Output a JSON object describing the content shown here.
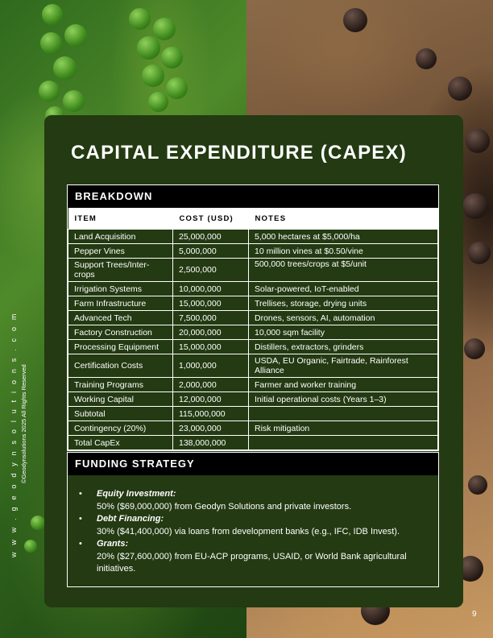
{
  "side_text": {
    "website": "w w w . g e o d y n s o l u t i o n s . c o m",
    "copyright": "©Geodynsolutions 2025 All Rights Reserved"
  },
  "title": "CAPITAL EXPENDITURE (CAPEX)",
  "breakdown": {
    "heading": "BREAKDOWN",
    "columns": [
      "ITEM",
      "COST (USD)",
      "NOTES"
    ],
    "rows": [
      {
        "item": "Land Acquisition",
        "cost": "25,000,000",
        "notes": "5,000 hectares at $5,000/ha"
      },
      {
        "item": "Pepper Vines",
        "cost": "5,000,000",
        "notes": "10 million vines at $0.50/vine"
      },
      {
        "item": "Support Trees/Inter-crops",
        "cost": "2,500,000",
        "notes": "500,000 trees/crops at $5/unit"
      },
      {
        "item": "Irrigation Systems",
        "cost": "10,000,000",
        "notes": "Solar-powered, IoT-enabled"
      },
      {
        "item": "Farm Infrastructure",
        "cost": "15,000,000",
        "notes": "Trellises, storage, drying units"
      },
      {
        "item": "Advanced Tech",
        "cost": "7,500,000",
        "notes": "Drones, sensors, AI, automation"
      },
      {
        "item": "Factory Construction",
        "cost": "20,000,000",
        "notes": "10,000 sqm facility"
      },
      {
        "item": "Processing Equipment",
        "cost": "15,000,000",
        "notes": "Distillers, extractors, grinders"
      },
      {
        "item": "Certification Costs",
        "cost": "1,000,000",
        "notes": "USDA, EU Organic, Fairtrade, Rainforest Alliance"
      },
      {
        "item": "Training Programs",
        "cost": "2,000,000",
        "notes": "Farmer and worker training"
      },
      {
        "item": "Working Capital",
        "cost": "12,000,000",
        "notes": "Initial operational costs (Years 1–3)"
      },
      {
        "item": "Subtotal",
        "cost": "115,000,000",
        "notes": ""
      },
      {
        "item": "Contingency (20%)",
        "cost": "23,000,000",
        "notes": "Risk mitigation"
      },
      {
        "item": "Total CapEx",
        "cost": "138,000,000",
        "notes": ""
      }
    ]
  },
  "funding": {
    "heading": "FUNDING STRATEGY",
    "bullet": "•",
    "items": [
      {
        "title": "Equity Investment:",
        "text": "50% ($69,000,000) from Geodyn Solutions and private investors."
      },
      {
        "title": "Debt Financing:",
        "text": "30% ($41,400,000) via loans from development banks (e.g., IFC, IDB Invest)."
      },
      {
        "title": "Grants:",
        "text": "20% ($27,600,000) from EU-ACP programs, USAID, or World Bank agricultural initiatives."
      }
    ]
  },
  "page_number": "9",
  "colors": {
    "panel": "#233a12",
    "section_header": "#000000",
    "text": "#ffffff"
  }
}
